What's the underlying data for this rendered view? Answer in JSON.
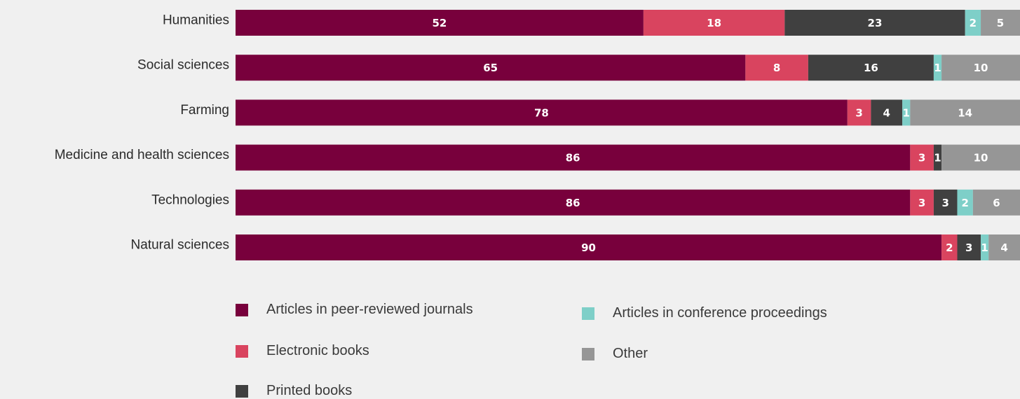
{
  "chart_data": {
    "type": "bar",
    "orientation": "horizontal",
    "stacked": true,
    "categories": [
      "Humanities",
      "Social sciences",
      "Farming",
      "Medicine and health sciences",
      "Technologies",
      "Natural sciences"
    ],
    "series": [
      {
        "name": "Articles in peer-reviewed journals",
        "color": "#78003c",
        "values": [
          52,
          65,
          78,
          86,
          86,
          90
        ]
      },
      {
        "name": "Electronic books",
        "color": "#d9445f",
        "values": [
          18,
          8,
          3,
          3,
          3,
          2
        ]
      },
      {
        "name": "Printed books",
        "color": "#404040",
        "values": [
          23,
          16,
          4,
          1,
          3,
          3
        ]
      },
      {
        "name": "Articles in conference proceedings",
        "color": "#7ecfc8",
        "values": [
          2,
          1,
          1,
          0,
          2,
          1
        ]
      },
      {
        "name": "Other",
        "color": "#969696",
        "values": [
          5,
          10,
          14,
          10,
          6,
          4
        ]
      }
    ],
    "xlim": [
      0,
      100
    ],
    "grid": false,
    "legend_position": "bottom"
  }
}
